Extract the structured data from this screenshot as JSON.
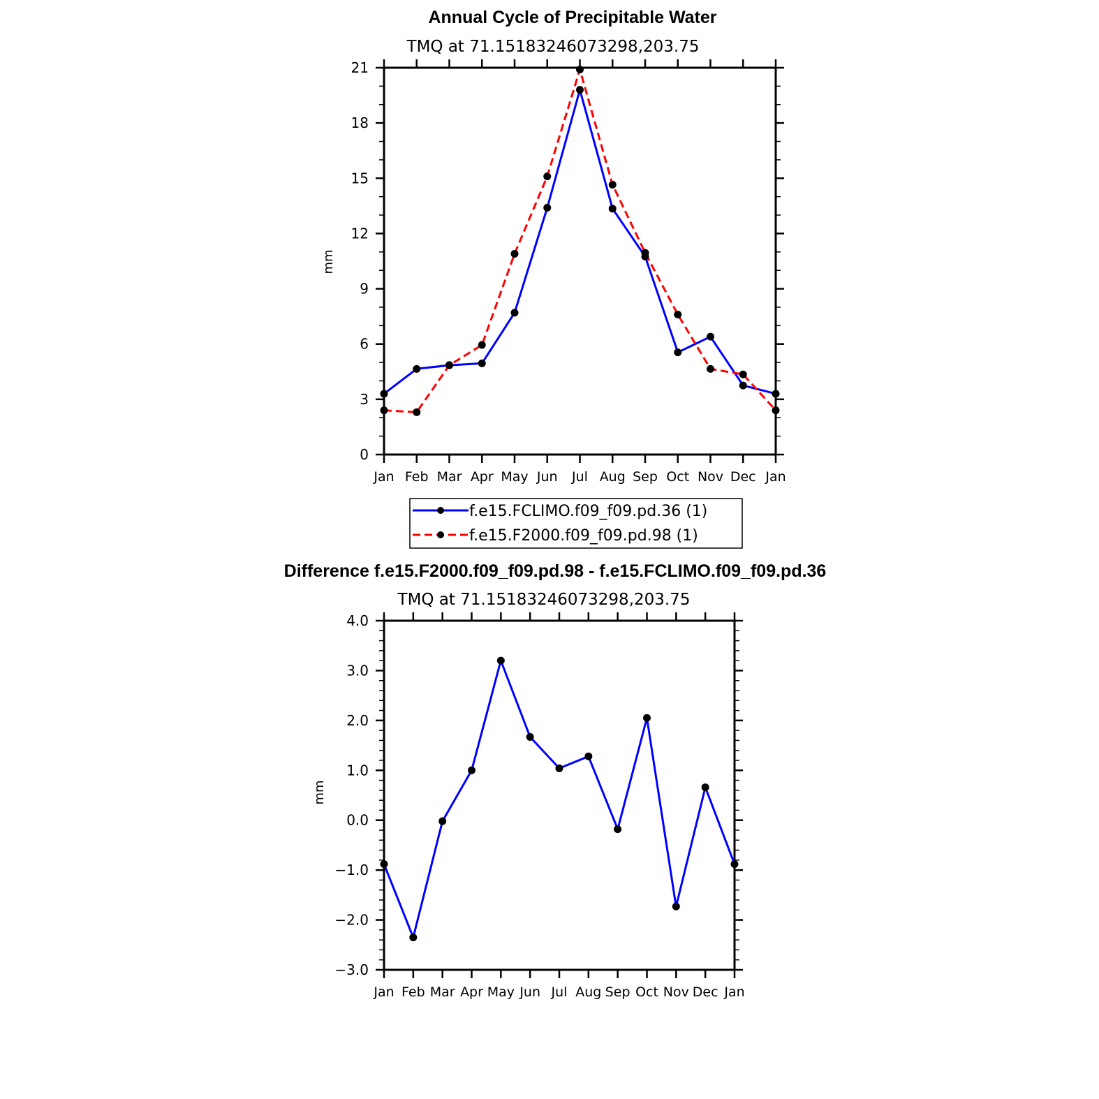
{
  "chart_data": [
    {
      "type": "line",
      "title": "Annual Cycle of Precipitable Water",
      "subtitle": "TMQ  at  71.15183246073298,203.75",
      "xlabel": "",
      "ylabel": "mm",
      "categories": [
        "Jan",
        "Feb",
        "Mar",
        "Apr",
        "May",
        "Jun",
        "Jul",
        "Aug",
        "Sep",
        "Oct",
        "Nov",
        "Dec",
        "Jan"
      ],
      "ylim": [
        0,
        21
      ],
      "yticks": [
        0,
        3,
        6,
        9,
        12,
        15,
        18,
        21
      ],
      "ytick_labels": [
        "0",
        "3",
        "6",
        "9",
        "12",
        "15",
        "18",
        "21"
      ],
      "grid": false,
      "legend_position": "bottom",
      "series": [
        {
          "name": "f.e15.FCLIMO.f09_f09.pd.36 (1)",
          "color": "#0000ff",
          "style": "solid",
          "values": [
            3.3,
            4.65,
            4.85,
            4.95,
            7.7,
            13.4,
            19.8,
            13.35,
            10.75,
            5.55,
            6.4,
            3.75,
            3.3
          ]
        },
        {
          "name": "f.e15.F2000.f09_f09.pd.98 (1)",
          "color": "#ff0000",
          "style": "dashed",
          "values": [
            2.4,
            2.3,
            4.85,
            5.95,
            10.9,
            15.1,
            20.9,
            14.65,
            10.95,
            7.6,
            4.65,
            4.35,
            2.4
          ]
        }
      ]
    },
    {
      "type": "line",
      "title": "Difference f.e15.F2000.f09_f09.pd.98 - f.e15.FCLIMO.f09_f09.pd.36",
      "subtitle": "TMQ  at  71.15183246073298,203.75",
      "xlabel": "",
      "ylabel": "mm",
      "categories": [
        "Jan",
        "Feb",
        "Mar",
        "Apr",
        "May",
        "Jun",
        "Jul",
        "Aug",
        "Sep",
        "Oct",
        "Nov",
        "Dec",
        "Jan"
      ],
      "ylim": [
        -3.0,
        4.0
      ],
      "yticks": [
        -3,
        -2,
        -1,
        0,
        1,
        2,
        3,
        4
      ],
      "ytick_labels": [
        "−3.0",
        "−2.0",
        "−1.0",
        "0.0",
        "1.0",
        "2.0",
        "3.0",
        "4.0"
      ],
      "grid": false,
      "series": [
        {
          "name": "Difference",
          "color": "#0000ff",
          "style": "solid",
          "values": [
            -0.88,
            -2.35,
            -0.02,
            1.0,
            3.2,
            1.67,
            1.04,
            1.28,
            -0.18,
            2.05,
            -1.73,
            0.66,
            -0.88
          ]
        }
      ]
    }
  ]
}
